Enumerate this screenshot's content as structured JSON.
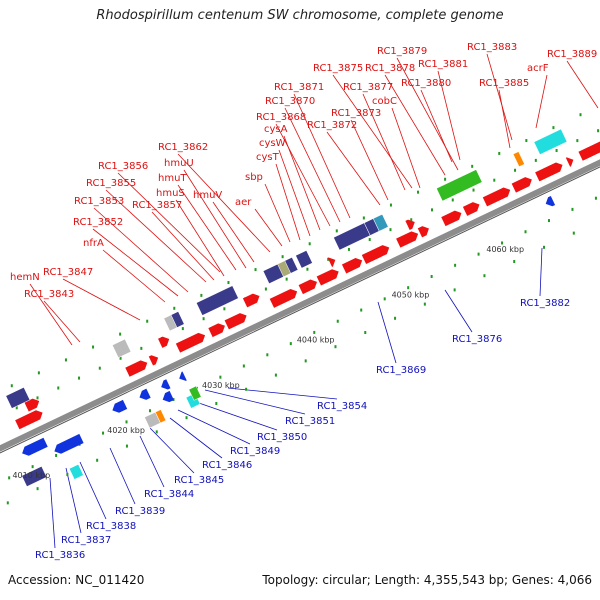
{
  "title": "Rhodospirillum centenum SW chromosome, complete genome",
  "footer": {
    "accession": "Accession: NC_011420",
    "summary": "Topology: circular; Length: 4,355,543 bp; Genes: 4,066"
  },
  "colors": {
    "backbone": "#8c8c8c",
    "cds_forward": "#ee1111",
    "cds_reverse": "#1133dd",
    "label_forward": "#dd1111",
    "label_reverse": "#1111bb",
    "cog_purple": "#3a3a8a",
    "cog_green": "#33bb22",
    "cog_cyan": "#22dddd",
    "cog_grey": "#bbbbbb",
    "cog_orange": "#ff8800",
    "cog_olive": "#aaaa77",
    "cog_teal": "#3399bb",
    "dot": "#229922"
  },
  "ticks": [
    "4010 kbp",
    "4020 kbp",
    "4030 kbp",
    "4040 kbp",
    "4050 kbp",
    "4060 kbp"
  ],
  "forward_labels": [
    "RC1_3889",
    "RC1_3883",
    "RC1_3879",
    "acrF",
    "RC1_3881",
    "RC1_3878",
    "RC1_3875",
    "RC1_3885",
    "RC1_3880",
    "RC1_3871",
    "RC1_3877",
    "RC1_3870",
    "cobC",
    "RC1_3873",
    "RC1_3868",
    "RC1_3872",
    "cysA",
    "cysW",
    "RC1_3862",
    "cysT",
    "hmuU",
    "RC1_3856",
    "sbp",
    "hmuT",
    "RC1_3855",
    "hmuS",
    "hmuV",
    "aer",
    "RC1_3853",
    "RC1_3857",
    "RC1_3852",
    "nfrA",
    "RC1_3847",
    "hemN",
    "RC1_3843"
  ],
  "reverse_labels": [
    "RC1_3882",
    "RC1_3876",
    "RC1_3869",
    "RC1_3854",
    "RC1_3851",
    "RC1_3850",
    "RC1_3849",
    "RC1_3846",
    "RC1_3845",
    "RC1_3844",
    "RC1_3839",
    "RC1_3838",
    "RC1_3837",
    "RC1_3836"
  ]
}
